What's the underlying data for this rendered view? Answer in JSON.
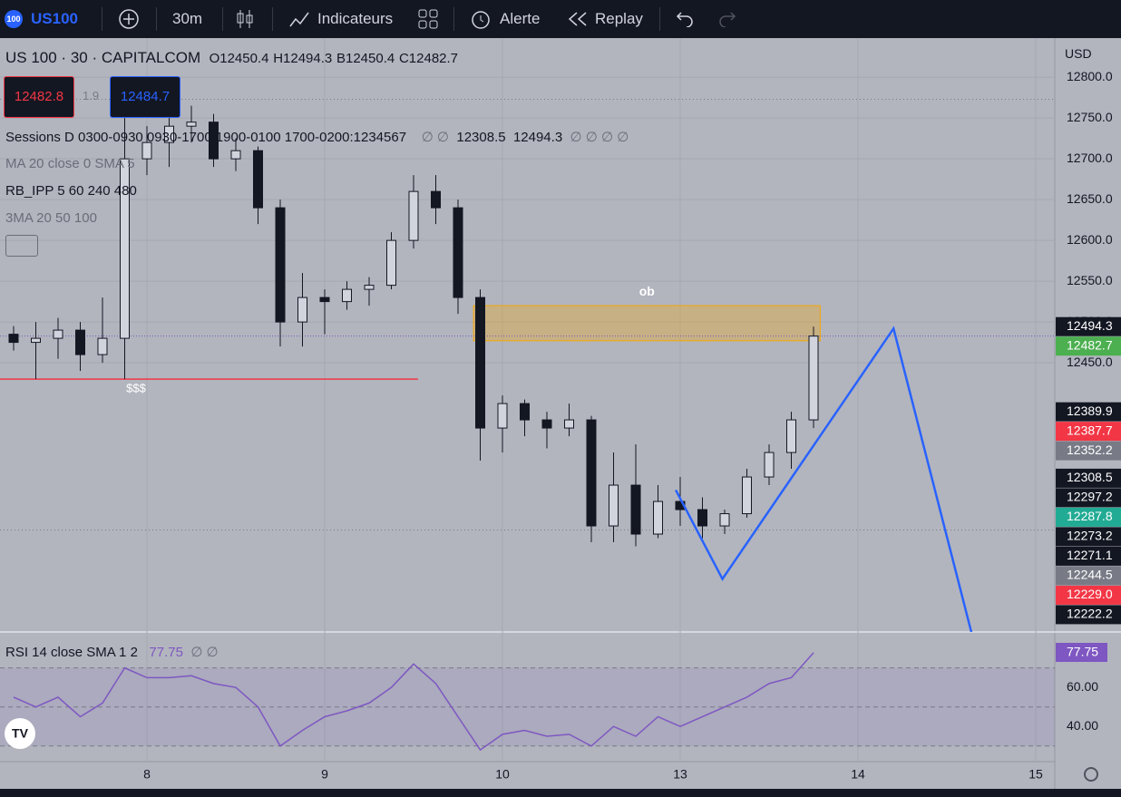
{
  "ui": {
    "toolbar": {
      "symbol_badge": "100",
      "symbol": "US100",
      "interval": "30m",
      "indicators": "Indicateurs",
      "alert": "Alerte",
      "replay": "Replay"
    },
    "legend": {
      "symbol": "US 100",
      "interval": "30",
      "exchange": "CAPITALCOM",
      "open": "O12450.4",
      "high": "H12494.3",
      "bid": "B12450.4",
      "close": "C12482.7",
      "sell": "12482.8",
      "spread": "1.9",
      "buy": "12484.7"
    },
    "indicators": [
      {
        "name": "Sessions D 0300-0930 0930-1700 1900-0100 1700-0200:1234567",
        "values": "∅ ∅",
        "extra1": "12308.5",
        "extra2": "12494.3",
        "extra3": "∅ ∅ ∅ ∅"
      },
      {
        "name": "MA 20 close 0 SMA 5"
      },
      {
        "name": "RB_IPP 5 60 240 480"
      },
      {
        "name": "3MA 20 50 100"
      }
    ],
    "currency": "USD"
  },
  "chart_data": {
    "type": "candlestick",
    "up_color": "#d1d4dc",
    "down_color": "#131722",
    "wick_color": "#131722",
    "categories": [
      null,
      null,
      null,
      null,
      null,
      null,
      "8",
      null,
      null,
      null,
      null,
      null,
      null,
      null,
      "9",
      null,
      null,
      null,
      null,
      null,
      null,
      null,
      "10",
      null,
      null,
      null,
      null,
      null,
      null,
      null,
      "13",
      null,
      null,
      null,
      null,
      null,
      null,
      null,
      "14",
      null,
      null,
      null,
      null,
      null,
      null,
      null,
      "15"
    ],
    "open": [
      12485,
      12475,
      12480,
      12490,
      12460,
      12480,
      12700,
      12720,
      12740,
      12745,
      12700,
      12710,
      12640,
      12500,
      12530,
      12525,
      12540,
      12545,
      12600,
      12660,
      12640,
      12530,
      12370,
      12400,
      12380,
      12370,
      12380,
      12250,
      12300,
      12240,
      12280,
      12270,
      12250,
      12265,
      12310,
      12340,
      12380,
      null,
      null,
      null,
      null,
      null,
      null,
      null,
      null,
      null,
      null
    ],
    "high": [
      12495,
      12500,
      12505,
      12500,
      12530,
      12750,
      12740,
      12750,
      12765,
      12755,
      12725,
      12715,
      12650,
      12560,
      12540,
      12550,
      12555,
      12610,
      12680,
      12680,
      12650,
      12540,
      12410,
      12405,
      12390,
      12400,
      12385,
      12340,
      12350,
      12300,
      12310,
      12285,
      12270,
      12320,
      12350,
      12390,
      12494.3,
      null,
      null,
      null,
      null,
      null,
      null,
      null,
      null,
      null,
      null
    ],
    "low": [
      12465,
      12430,
      12455,
      12440,
      12450,
      12430,
      12680,
      12690,
      12720,
      12690,
      12685,
      12620,
      12470,
      12470,
      12485,
      12515,
      12520,
      12540,
      12590,
      12620,
      12510,
      12330,
      12340,
      12360,
      12345,
      12360,
      12230,
      12230,
      12225,
      12235,
      12250,
      12235,
      12240,
      12260,
      12300,
      12320,
      12370,
      null,
      null,
      null,
      null,
      null,
      null,
      null,
      null,
      null,
      null
    ],
    "close": [
      12475,
      12480,
      12490,
      12460,
      12480,
      12700,
      12720,
      12740,
      12745,
      12700,
      12710,
      12640,
      12500,
      12530,
      12525,
      12540,
      12545,
      12600,
      12660,
      12640,
      12530,
      12370,
      12400,
      12380,
      12370,
      12380,
      12250,
      12300,
      12240,
      12280,
      12270,
      12250,
      12265,
      12310,
      12340,
      12380,
      12482.7,
      null,
      null,
      null,
      null,
      null,
      null,
      null,
      null,
      null,
      null
    ],
    "ylim": [
      12120,
      12848
    ],
    "yticks": [
      {
        "value": 12450,
        "label": "12450.0"
      },
      {
        "value": 12500,
        "label": "12500.0"
      },
      {
        "value": 12550,
        "label": "12550.0"
      },
      {
        "value": 12600,
        "label": "12600.0"
      },
      {
        "value": 12650,
        "label": "12650.0"
      },
      {
        "value": 12700,
        "label": "12700.0"
      },
      {
        "value": 12750,
        "label": "12750.0"
      },
      {
        "value": 12800,
        "label": "12800.0"
      }
    ],
    "grid": true,
    "dotted_levels": [
      12773,
      12245
    ],
    "liquidity_line": {
      "value": 12430,
      "x_end": 18.2,
      "label": "$$$",
      "color": "#f23645"
    },
    "ob_zone": {
      "label": "ob",
      "top": 12520,
      "bottom": 12477,
      "x0": 20.7,
      "x1": 36.3,
      "color": "#f7a600"
    },
    "projection": {
      "x": [
        29.8,
        31.9,
        39.6,
        43.1
      ],
      "values": [
        12294,
        12185,
        12492,
        12120
      ],
      "color": "#2962ff"
    },
    "price_badges": [
      {
        "value": 12494.3,
        "color": "#131722"
      },
      {
        "value": 12482.7,
        "color": "#4caf50"
      },
      {
        "value": 12389.9,
        "color": "#131722"
      },
      {
        "value": 12387.7,
        "color": "#f23645"
      },
      {
        "value": 12352.2,
        "color": "#787b86"
      },
      {
        "value": 12308.5,
        "color": "#131722"
      },
      {
        "value": 12297.2,
        "color": "#131722"
      },
      {
        "value": 12287.8,
        "color": "#22ab94"
      },
      {
        "value": 12273.2,
        "color": "#131722"
      },
      {
        "value": 12271.1,
        "color": "#131722"
      },
      {
        "value": 12244.5,
        "color": "#787b86"
      },
      {
        "value": 12229,
        "label": "12229.0",
        "color": "#f23645"
      },
      {
        "value": 12222.2,
        "color": "#131722"
      }
    ],
    "rsi": {
      "name": "RSI 14 close SMA 1 2",
      "extra": "∅ ∅",
      "color": "#7e57c2",
      "values": [
        55,
        50,
        55,
        45,
        52,
        70,
        65,
        65,
        66,
        62,
        60,
        50,
        30,
        38,
        45,
        48,
        52,
        60,
        72,
        62,
        45,
        28,
        36,
        38,
        35,
        36,
        30,
        40,
        35,
        45,
        40,
        45,
        50,
        55,
        62,
        65,
        77.75,
        null,
        null,
        null,
        null,
        null,
        null,
        null,
        null,
        null,
        null
      ],
      "ylim": [
        22,
        88.4
      ],
      "yticks": [
        {
          "value": 40,
          "label": "40.00"
        },
        {
          "value": 60,
          "label": "60.00"
        }
      ],
      "levels": [
        30,
        50,
        70
      ]
    }
  }
}
